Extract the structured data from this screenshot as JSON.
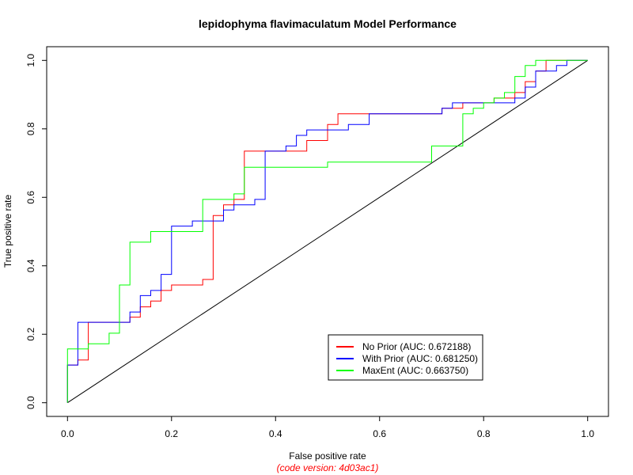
{
  "chart_data": {
    "type": "line",
    "title": "lepidophyma flavimaculatum Model Performance",
    "xlabel": "False positive rate",
    "ylabel": "True positive rate",
    "note": "(code version: 4d03ac1)",
    "xlim": [
      -0.04,
      1.04
    ],
    "ylim": [
      -0.04,
      1.04
    ],
    "x_ticks": [
      "0.0",
      "0.2",
      "0.4",
      "0.6",
      "0.8",
      "1.0"
    ],
    "y_ticks": [
      "0.0",
      "0.2",
      "0.4",
      "0.6",
      "0.8",
      "1.0"
    ],
    "legend_position": "bottom-right",
    "reference_line": {
      "x": [
        0,
        1
      ],
      "y": [
        0,
        1
      ],
      "color": "#000000"
    },
    "series": [
      {
        "name": "No Prior (AUC: 0.672188)",
        "color": "#ff0000",
        "x": [
          0,
          0,
          0.02,
          0.02,
          0.04,
          0.04,
          0.12,
          0.12,
          0.14,
          0.14,
          0.16,
          0.16,
          0.18,
          0.18,
          0.2,
          0.2,
          0.26,
          0.26,
          0.28,
          0.28,
          0.3,
          0.3,
          0.32,
          0.32,
          0.34,
          0.34,
          0.46,
          0.46,
          0.5,
          0.5,
          0.52,
          0.52,
          0.72,
          0.72,
          0.76,
          0.76,
          0.82,
          0.82,
          0.86,
          0.86,
          0.88,
          0.88,
          0.9,
          0.9,
          0.92,
          0.92,
          1.0
        ],
        "y": [
          0,
          0.11,
          0.11,
          0.125,
          0.125,
          0.235,
          0.235,
          0.25,
          0.25,
          0.28,
          0.28,
          0.297,
          0.297,
          0.328,
          0.328,
          0.344,
          0.344,
          0.36,
          0.36,
          0.547,
          0.547,
          0.578,
          0.578,
          0.594,
          0.594,
          0.735,
          0.735,
          0.766,
          0.766,
          0.813,
          0.813,
          0.844,
          0.844,
          0.86,
          0.86,
          0.876,
          0.876,
          0.89,
          0.89,
          0.906,
          0.906,
          0.938,
          0.938,
          0.969,
          0.969,
          1.0,
          1.0
        ]
      },
      {
        "name": "With Prior (AUC: 0.681250)",
        "color": "#0000ff",
        "x": [
          0,
          0,
          0.02,
          0.02,
          0.12,
          0.12,
          0.14,
          0.14,
          0.16,
          0.16,
          0.18,
          0.18,
          0.2,
          0.2,
          0.24,
          0.24,
          0.3,
          0.3,
          0.32,
          0.32,
          0.36,
          0.36,
          0.38,
          0.38,
          0.42,
          0.42,
          0.44,
          0.44,
          0.46,
          0.46,
          0.48,
          0.48,
          0.5,
          0.5,
          0.54,
          0.54,
          0.58,
          0.58,
          0.72,
          0.72,
          0.74,
          0.74,
          0.86,
          0.86,
          0.88,
          0.88,
          0.9,
          0.9,
          0.94,
          0.94,
          0.96,
          0.96,
          1.0
        ],
        "y": [
          0,
          0.11,
          0.11,
          0.235,
          0.235,
          0.265,
          0.265,
          0.313,
          0.313,
          0.328,
          0.328,
          0.375,
          0.375,
          0.516,
          0.516,
          0.531,
          0.531,
          0.563,
          0.563,
          0.578,
          0.578,
          0.594,
          0.594,
          0.735,
          0.735,
          0.75,
          0.75,
          0.781,
          0.781,
          0.797,
          0.797,
          0.797,
          0.797,
          0.797,
          0.797,
          0.813,
          0.813,
          0.844,
          0.844,
          0.86,
          0.86,
          0.876,
          0.876,
          0.89,
          0.89,
          0.922,
          0.922,
          0.969,
          0.969,
          0.985,
          0.985,
          1.0,
          1.0
        ]
      },
      {
        "name": "MaxEnt (AUC: 0.663750)",
        "color": "#00ff00",
        "x": [
          0,
          0,
          0.04,
          0.04,
          0.08,
          0.08,
          0.1,
          0.1,
          0.12,
          0.12,
          0.16,
          0.16,
          0.26,
          0.26,
          0.32,
          0.32,
          0.34,
          0.34,
          0.5,
          0.5,
          0.7,
          0.7,
          0.76,
          0.76,
          0.78,
          0.78,
          0.8,
          0.8,
          0.82,
          0.82,
          0.84,
          0.84,
          0.86,
          0.86,
          0.88,
          0.88,
          0.9,
          0.9,
          0.92,
          0.92,
          1.0
        ],
        "y": [
          0,
          0.157,
          0.157,
          0.172,
          0.172,
          0.203,
          0.203,
          0.344,
          0.344,
          0.469,
          0.469,
          0.5,
          0.5,
          0.594,
          0.594,
          0.61,
          0.61,
          0.688,
          0.688,
          0.703,
          0.703,
          0.75,
          0.75,
          0.844,
          0.844,
          0.86,
          0.86,
          0.876,
          0.876,
          0.89,
          0.89,
          0.906,
          0.906,
          0.953,
          0.953,
          0.985,
          0.985,
          1.0,
          1.0,
          1.0,
          1.0
        ]
      }
    ]
  }
}
